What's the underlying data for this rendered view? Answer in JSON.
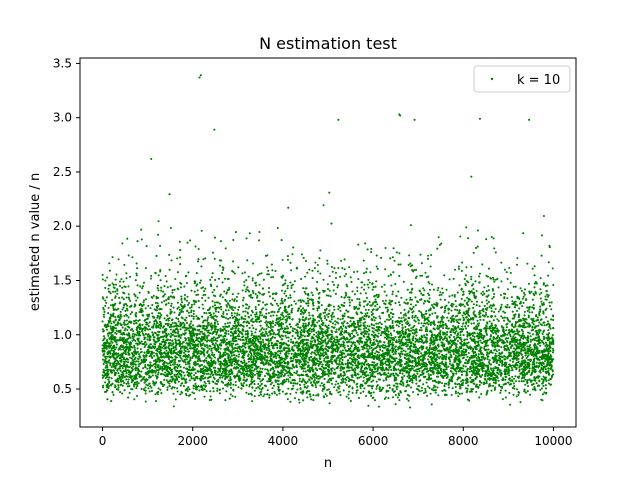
{
  "chart_data": {
    "type": "scatter",
    "title": "N estimation test",
    "xlabel": "n",
    "ylabel": "estimated n value / n",
    "xlim": [
      -500,
      10500
    ],
    "ylim": [
      0.15,
      3.55
    ],
    "xticks": [
      0,
      2000,
      4000,
      6000,
      8000,
      10000
    ],
    "yticks": [
      0.5,
      1.0,
      1.5,
      2.0,
      2.5,
      3.0,
      3.5
    ],
    "xtick_labels": [
      "0",
      "2000",
      "4000",
      "6000",
      "8000",
      "10000"
    ],
    "ytick_labels": [
      "0.5",
      "1.0",
      "1.5",
      "2.0",
      "2.5",
      "3.0",
      "3.5"
    ],
    "grid": false,
    "legend_position": "upper right",
    "series": [
      {
        "name": "k = 10",
        "color": "#008000",
        "marker": "dot",
        "x_range": [
          0,
          10000
        ],
        "count": 10000,
        "distribution": "dense band 0.5–1.3 centered near 0.9, long upper tail to ~3.0, minimum ~0.33",
        "notable_points": [
          {
            "x": 2150,
            "y": 3.37
          },
          {
            "x": 2180,
            "y": 3.39
          },
          {
            "x": 6580,
            "y": 3.03
          },
          {
            "x": 6600,
            "y": 3.02
          },
          {
            "x": 2480,
            "y": 2.89
          },
          {
            "x": 5230,
            "y": 2.98
          },
          {
            "x": 6920,
            "y": 2.98
          },
          {
            "x": 8370,
            "y": 2.99
          },
          {
            "x": 9460,
            "y": 2.98
          },
          {
            "x": 1080,
            "y": 2.62
          },
          {
            "x": 6500,
            "y": 0.36
          },
          {
            "x": 6820,
            "y": 0.33
          }
        ]
      }
    ]
  }
}
